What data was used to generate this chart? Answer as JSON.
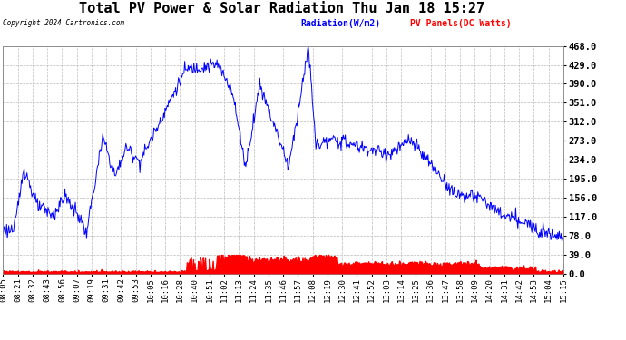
{
  "title": "Total PV Power & Solar Radiation Thu Jan 18 15:27",
  "copyright": "Copyright 2024 Cartronics.com",
  "legend_radiation": "Radiation(W/m2)",
  "legend_pv": "PV Panels(DC Watts)",
  "legend_radiation_color": "blue",
  "legend_pv_color": "red",
  "ylabel_right_ticks": [
    0.0,
    39.0,
    78.0,
    117.0,
    156.0,
    195.0,
    234.0,
    273.0,
    312.0,
    351.0,
    390.0,
    429.0,
    468.0
  ],
  "ymax": 468.0,
  "ymin": 0.0,
  "background_color": "#ffffff",
  "plot_bg_color": "#ffffff",
  "grid_color": "#bbbbbb",
  "title_fontsize": 11,
  "tick_label_fontsize": 6.5,
  "x_tick_labels": [
    "08:05",
    "08:21",
    "08:32",
    "08:43",
    "08:56",
    "09:07",
    "09:19",
    "09:31",
    "09:42",
    "09:53",
    "10:05",
    "10:16",
    "10:28",
    "10:40",
    "10:51",
    "11:02",
    "11:13",
    "11:24",
    "11:35",
    "11:46",
    "11:57",
    "12:08",
    "12:19",
    "12:30",
    "12:41",
    "12:52",
    "13:03",
    "13:14",
    "13:25",
    "13:36",
    "13:47",
    "13:58",
    "14:09",
    "14:20",
    "14:31",
    "14:42",
    "14:53",
    "15:04",
    "15:15"
  ]
}
